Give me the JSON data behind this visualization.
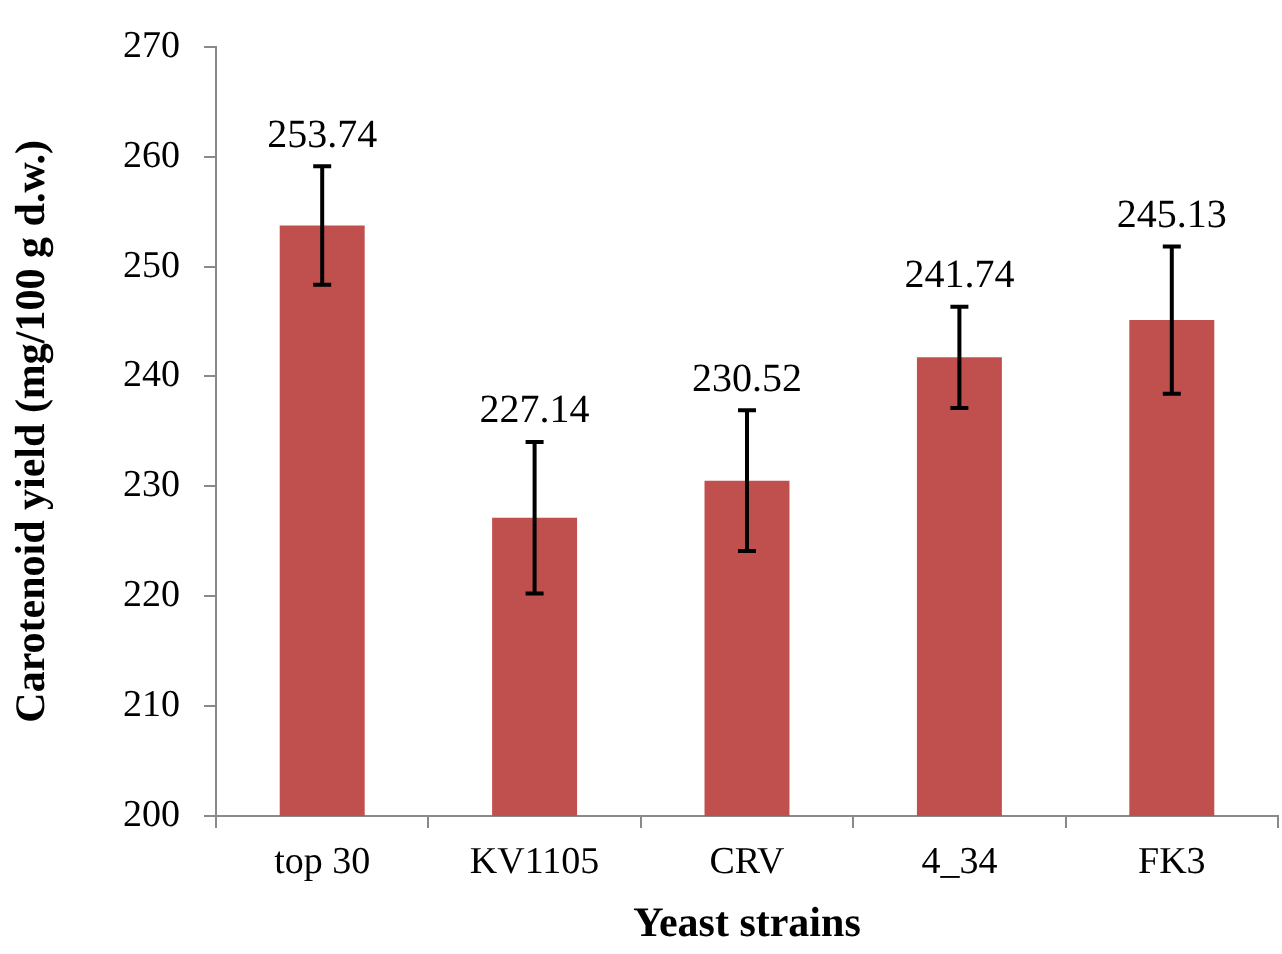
{
  "chart_data": {
    "type": "bar",
    "xlabel": "Yeast strains",
    "ylabel": "Carotenoid yield (mg/100 g d.w.)",
    "categories": [
      "top 30",
      "KV1105",
      "CRV",
      "4_34",
      "FK3"
    ],
    "values": [
      253.74,
      227.14,
      230.52,
      241.74,
      245.13
    ],
    "errors": [
      5.4,
      6.9,
      6.4,
      4.6,
      6.7
    ],
    "color": "#c0504d",
    "ylim": [
      200,
      270
    ],
    "yticks": [
      200,
      210,
      220,
      230,
      240,
      250,
      260,
      270
    ],
    "data_labels": true
  }
}
